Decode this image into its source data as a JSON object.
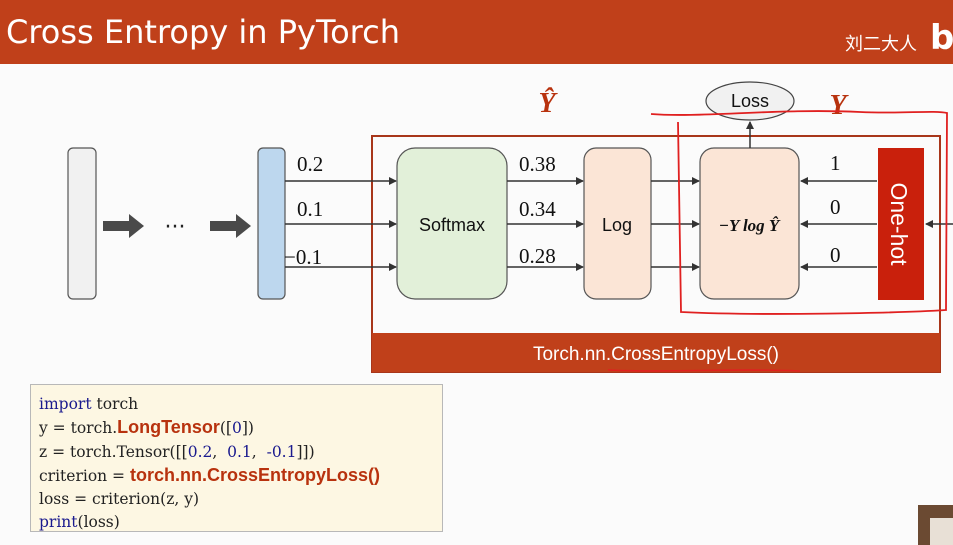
{
  "header": {
    "title": "Cross Entropy in PyTorch",
    "watermark": "刘二大人",
    "logo_glyph": "b"
  },
  "diagram": {
    "y_hat_label": "Ŷ",
    "y_label": "Y",
    "loss_label": "Loss",
    "inputs": [
      "0.2",
      "0.1",
      "−0.1"
    ],
    "ellipsis": "···",
    "softmax_label": "Softmax",
    "softmax_out": [
      "0.38",
      "0.34",
      "0.28"
    ],
    "log_label": "Log",
    "ce_label": "−Y log Ŷ",
    "onehot_values": [
      "1",
      "0",
      "0"
    ],
    "onehot_label": "One-hot",
    "footer_label": "Torch.nn.CrossEntropyLoss()"
  },
  "code": {
    "l1_kw": "import",
    "l1_rest": " torch",
    "l2_pre": "y = torch.",
    "l2_hl": "LongTensor",
    "l2_post_a": "([",
    "l2_num": "0",
    "l2_post_b": "])",
    "l3_pre": "z = torch.Tensor([[",
    "l3_n1": "0.2",
    "l3_s1": ",  ",
    "l3_n2": "0.1",
    "l3_s2": ",  ",
    "l3_n3": "-0.1",
    "l3_post": "]])",
    "l4_pre": "criterion = ",
    "l4_hl": "torch.nn.CrossEntropyLoss()",
    "l5": "loss = criterion(z, y)",
    "l6_kw": "print",
    "l6_rest": "(loss)"
  },
  "colors": {
    "header_bg": "#c0401a",
    "accent_red": "#b8320e",
    "onehot_red": "#c9200c",
    "softmax_fill": "#e2f0d9",
    "log_fill": "#fbe5d6",
    "input_fill": "#bdd7ee",
    "annotation_red": "#e02020"
  }
}
